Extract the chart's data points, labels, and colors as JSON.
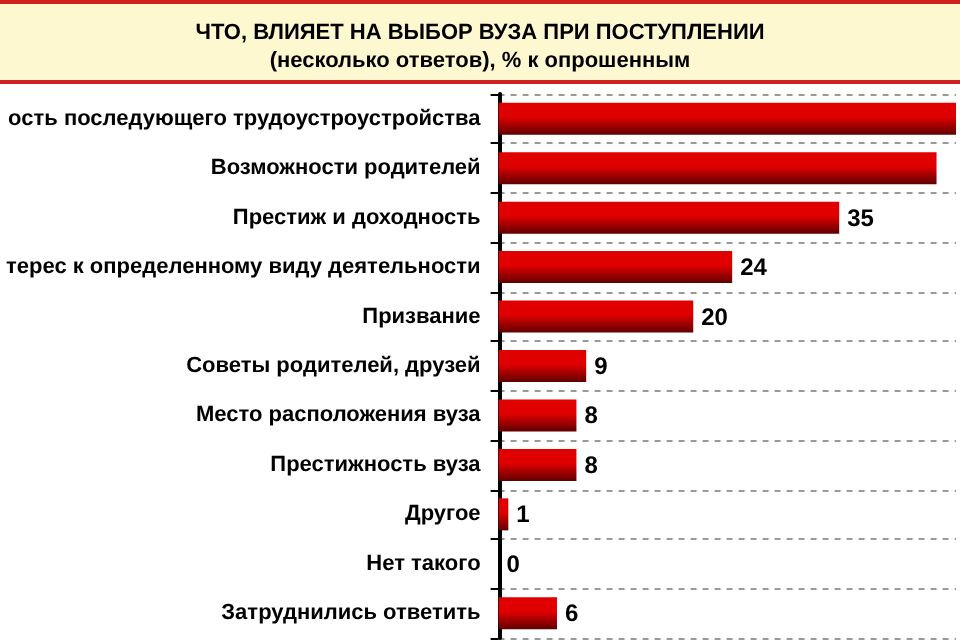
{
  "chart_data": {
    "type": "bar",
    "orientation": "horizontal",
    "title": "ЧТО, ВЛИЯЕТ НА ВЫБОР ВУЗА ПРИ ПОСТУПЛЕНИИ",
    "subtitle": "(несколько ответов), % к опрошенным",
    "categories": [
      "ость последующего трудоустроустройства",
      "Возможности родителей",
      "Престиж и доходность",
      "терес к определенному виду деятельности",
      "Призвание",
      "Советы родителей, друзей",
      "Место расположения вуза",
      "Престижность вуза",
      "Другое",
      "Нет такого",
      "Затруднились ответить"
    ],
    "values": [
      47,
      45,
      35,
      24,
      20,
      9,
      8,
      8,
      1,
      0,
      6
    ],
    "value_labels": [
      null,
      null,
      "35",
      "24",
      "20",
      "9",
      "8",
      "8",
      "1",
      "0",
      "6"
    ],
    "color": "#e00000",
    "grid": "y"
  }
}
